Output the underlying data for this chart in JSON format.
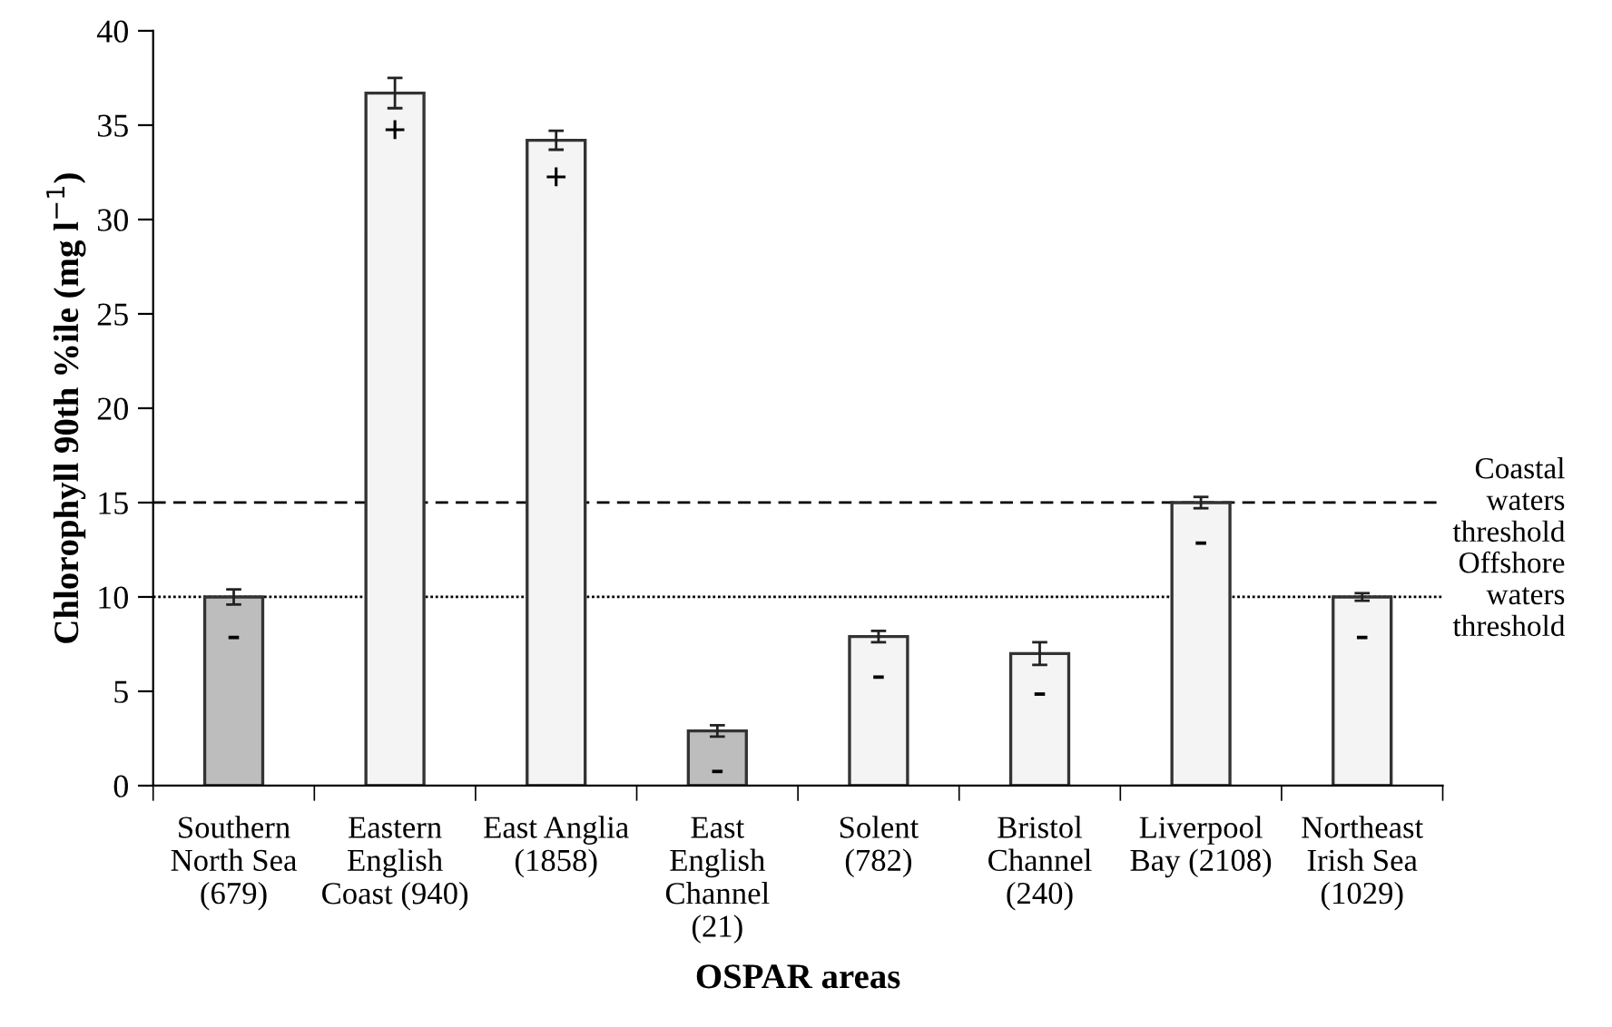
{
  "chart_data": {
    "type": "bar",
    "xlabel": "OSPAR areas",
    "ylabel": "Chlorophyll 90th %ile (mg l$^{−1}$)",
    "categories": [
      "Southern\nNorth Sea\n(679)",
      "Eastern\nEnglish\nCoast (940)",
      "East Anglia\n(1858)",
      "East\nEnglish\nChannel\n(21)",
      "Solent\n(782)",
      "Bristol\nChannel\n(240)",
      "Liverpool\nBay (2108)",
      "Northeast\nIrish Sea\n(1029)"
    ],
    "values": [
      10.0,
      36.7,
      34.2,
      2.9,
      7.9,
      7.0,
      15.0,
      10.0
    ],
    "errors": [
      0.4,
      0.8,
      0.5,
      0.3,
      0.3,
      0.6,
      0.3,
      0.2
    ],
    "colors": [
      "#bdbdbd",
      "#f4f4f4",
      "#f4f4f4",
      "#bdbdbd",
      "#f4f4f4",
      "#f4f4f4",
      "#f4f4f4",
      "#f4f4f4"
    ],
    "ylim": [
      0,
      40
    ],
    "yticks": [
      0,
      5,
      10,
      15,
      20,
      25,
      30,
      35,
      40
    ],
    "ref_lines": [
      {
        "axis": "y",
        "value": 15,
        "label": "Coastal\nwaters\nthreshold",
        "line_style": "dashed",
        "color": "#000000"
      },
      {
        "axis": "y",
        "value": 10,
        "label": "Offshore\nwaters\nthreshold",
        "line_style": "dotted",
        "color": "#000000"
      }
    ],
    "annotations": [
      {
        "text": "-",
        "x": "Southern\nNorth Sea\n(679)",
        "y": 10.0
      },
      {
        "text": "+",
        "x": "Eastern\nEnglish\nCoast (940)",
        "y": 36.7
      },
      {
        "text": "+",
        "x": "East Anglia\n(1858)",
        "y": 34.2
      },
      {
        "text": "-",
        "x": "East\nEnglish\nChannel\n(21)",
        "y": 2.9
      },
      {
        "text": "-",
        "x": "Solent\n(782)",
        "y": 7.9
      },
      {
        "text": "-",
        "x": "Bristol\nChannel\n(240)",
        "y": 7.0
      },
      {
        "text": "-",
        "x": "Liverpool\nBay (2108)",
        "y": 15.0
      },
      {
        "text": "-",
        "x": "Northeast\nIrish Sea\n(1029)",
        "y": 10.0
      }
    ],
    "grid": false,
    "legend": false
  }
}
